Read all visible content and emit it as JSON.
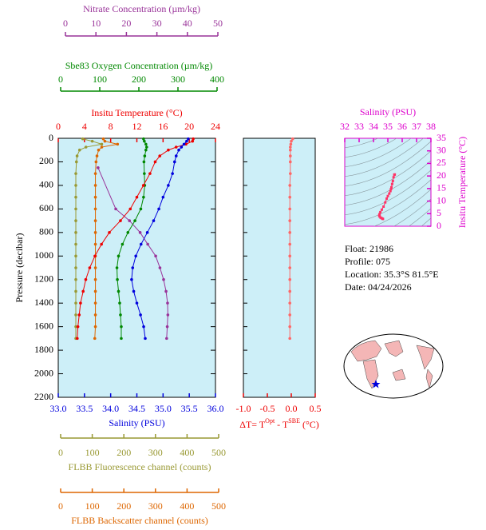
{
  "chart_data": [
    {
      "type": "line",
      "ylabel": "Pressure (decibar)",
      "ylim": [
        0,
        2200
      ],
      "y_inverted": true,
      "yticks": [
        0,
        200,
        400,
        600,
        800,
        1000,
        1200,
        1400,
        1600,
        1800,
        2000,
        2200
      ],
      "x_axes": [
        {
          "label": "Insitu Temperature (°C)",
          "color": "#ee0000",
          "xlim": [
            0,
            24
          ],
          "xticks": [
            0,
            4,
            8,
            12,
            16,
            20,
            24
          ]
        },
        {
          "label": "Salinity (PSU)",
          "color": "#0000dd",
          "xlim": [
            33,
            36
          ],
          "xticks": [
            {
              "value": 33,
              "label": "33.0"
            },
            {
              "value": 33.5,
              "label": "33.5"
            },
            {
              "value": 34,
              "label": "34.0"
            },
            {
              "value": 34.5,
              "label": "34.5"
            },
            {
              "value": 35,
              "label": "35.0"
            },
            {
              "value": 35.5,
              "label": "35.5"
            },
            {
              "value": 36,
              "label": "36.0"
            }
          ]
        },
        {
          "label": "Nitrate Concentration (µm/kg)",
          "color": "#993399",
          "xlim": [
            0,
            50
          ],
          "xticks": [
            0,
            10,
            20,
            30,
            40,
            50
          ]
        },
        {
          "label": "Sbe83 Oxygen Concentration (µm/kg)",
          "color": "#008800",
          "xlim": [
            0,
            400
          ],
          "xticks": [
            0,
            100,
            200,
            300,
            400
          ]
        },
        {
          "label": "FLBB Fluorescence channel (counts)",
          "color": "#999933",
          "xlim": [
            0,
            500
          ],
          "xticks": [
            0,
            100,
            200,
            300,
            400,
            500
          ]
        },
        {
          "label": "FLBB Backscatter channel (counts)",
          "color": "#dd6600",
          "xlim": [
            0,
            500
          ],
          "xticks": [
            0,
            100,
            200,
            300,
            400,
            500
          ]
        }
      ],
      "series": [
        {
          "axis": 4,
          "color": "#999933",
          "x": [
            70,
            100,
            130,
            80,
            60,
            52,
            50,
            48,
            48,
            48,
            48,
            48,
            48,
            48,
            48,
            48,
            48,
            48,
            48,
            48,
            48,
            48
          ],
          "y": [
            5,
            25,
            50,
            75,
            100,
            150,
            200,
            300,
            400,
            500,
            600,
            700,
            800,
            900,
            1000,
            1100,
            1200,
            1300,
            1400,
            1500,
            1600,
            1700
          ]
        },
        {
          "axis": 5,
          "color": "#dd6600",
          "x": [
            135,
            140,
            180,
            130,
            120,
            115,
            112,
            110,
            110,
            110,
            110,
            110,
            110,
            110,
            110,
            110,
            110,
            110,
            110,
            110,
            110,
            108
          ],
          "y": [
            5,
            25,
            50,
            75,
            100,
            150,
            200,
            300,
            400,
            500,
            600,
            700,
            800,
            900,
            1000,
            1100,
            1200,
            1300,
            1400,
            1500,
            1600,
            1700
          ]
        },
        {
          "axis": 2,
          "color": "#993399",
          "x": [
            10.7,
            16.5,
            21,
            24.5,
            27,
            29.6,
            31,
            32.2,
            33,
            33.5,
            33.6,
            33.4,
            33.2
          ],
          "y": [
            250,
            600,
            700,
            800,
            900,
            1000,
            1100,
            1200,
            1300,
            1400,
            1500,
            1600,
            1700
          ]
        },
        {
          "axis": 3,
          "color": "#008800",
          "x": [
            212,
            214,
            218,
            220,
            218,
            215,
            213,
            214,
            215,
            212,
            205,
            190,
            172,
            158,
            148,
            144,
            145,
            148,
            151,
            153,
            155,
            155
          ],
          "y": [
            5,
            25,
            50,
            75,
            100,
            150,
            200,
            300,
            400,
            500,
            600,
            700,
            800,
            900,
            1000,
            1100,
            1200,
            1300,
            1400,
            1500,
            1600,
            1700
          ]
        },
        {
          "axis": 0,
          "color": "#ee0000",
          "x": [
            20.6,
            20.5,
            19.5,
            18,
            16.8,
            15.5,
            14.8,
            14,
            13,
            12,
            11,
            9.5,
            7.8,
            6.6,
            5.6,
            4.8,
            4.2,
            3.8,
            3.4,
            3.2,
            3,
            2.9
          ],
          "y": [
            5,
            25,
            50,
            75,
            100,
            150,
            200,
            300,
            400,
            500,
            600,
            700,
            800,
            900,
            1000,
            1100,
            1200,
            1300,
            1400,
            1500,
            1600,
            1700
          ]
        },
        {
          "axis": 1,
          "color": "#0000dd",
          "x": [
            35.48,
            35.45,
            35.4,
            35.35,
            35.3,
            35.25,
            35.22,
            35.18,
            35.1,
            35,
            34.92,
            34.82,
            34.7,
            34.58,
            34.48,
            34.42,
            34.4,
            34.44,
            34.5,
            34.57,
            34.63,
            34.66
          ],
          "y": [
            5,
            25,
            50,
            75,
            100,
            150,
            200,
            300,
            400,
            500,
            600,
            700,
            800,
            900,
            1000,
            1100,
            1200,
            1300,
            1400,
            1500,
            1600,
            1700
          ]
        }
      ]
    },
    {
      "type": "line",
      "xlabel": [
        "ΔT= T",
        "Opt",
        " - T",
        "SBE",
        " (°C)"
      ],
      "color": "#ee0000",
      "xlim": [
        -1,
        0.5
      ],
      "xticks": [
        {
          "value": -1,
          "label": "-1.0"
        },
        {
          "value": -0.5,
          "label": "-0.5"
        },
        {
          "value": 0,
          "label": "0.0"
        },
        {
          "value": 0.5,
          "label": "0.5"
        }
      ],
      "ylim": [
        0,
        2200
      ],
      "y_inverted": true,
      "yticks": [
        0,
        200,
        400,
        600,
        800,
        1000,
        1200,
        1400,
        1600,
        1800,
        2000,
        2200
      ],
      "series": [
        {
          "color": "#ff6666",
          "x": [
            0.03,
            0,
            -0.01,
            -0.02,
            -0.02,
            -0.02,
            -0.02,
            -0.02,
            -0.03,
            -0.03,
            -0.03,
            -0.03,
            -0.03,
            -0.03,
            -0.03,
            -0.03,
            -0.03,
            -0.03,
            -0.03,
            -0.03,
            -0.03,
            -0.03
          ],
          "y": [
            5,
            25,
            50,
            75,
            100,
            150,
            200,
            300,
            400,
            500,
            600,
            700,
            800,
            900,
            1000,
            1100,
            1200,
            1300,
            1400,
            1500,
            1600,
            1700
          ]
        }
      ]
    },
    {
      "type": "scatter",
      "xlabel": "Salinity (PSU)",
      "ylabel": "Insitu Temperature (°C)",
      "axis_color": "#dd00cc",
      "color": "#ff3366",
      "xlim": [
        32,
        38
      ],
      "xticks": [
        32,
        33,
        34,
        35,
        36,
        37,
        38
      ],
      "ylim": [
        0,
        35
      ],
      "yticks": [
        0,
        5,
        10,
        15,
        20,
        25,
        30,
        35
      ],
      "x": [
        35.48,
        35.45,
        35.4,
        35.35,
        35.3,
        35.25,
        35.22,
        35.18,
        35.1,
        35,
        34.92,
        34.82,
        34.7,
        34.58,
        34.48,
        34.42,
        34.4,
        34.44,
        34.5,
        34.57,
        34.63,
        34.66
      ],
      "y": [
        20.6,
        20.5,
        19.5,
        18,
        16.8,
        15.5,
        14.8,
        14,
        13,
        12,
        11,
        9.5,
        7.8,
        6.6,
        5.6,
        4.8,
        4.2,
        3.8,
        3.4,
        3.2,
        3,
        2.9
      ]
    }
  ],
  "info": [
    "Float:  21986",
    "Profile:  075",
    "Location:  35.3°S  81.5°E",
    "Date:  04/24/2026"
  ]
}
